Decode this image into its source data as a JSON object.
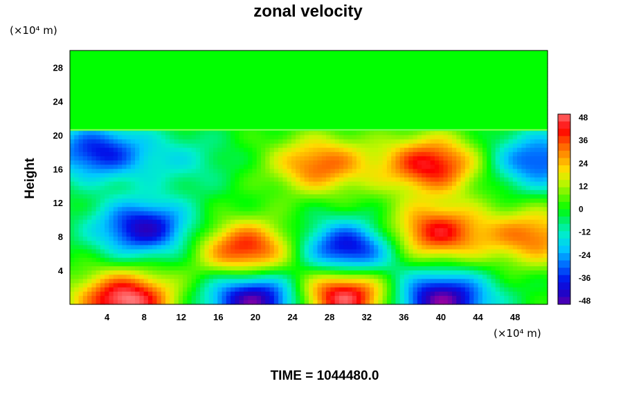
{
  "chart_data": {
    "type": "heatmap",
    "title": "zonal velocity",
    "ylabel": "Height",
    "xunit": "(×10⁴ m)",
    "yunit": "(×10⁴ m)",
    "time_label": "TIME = 1044480.0",
    "xlim": [
      0,
      51.5
    ],
    "ylim": [
      0,
      30
    ],
    "xticks": [
      "4",
      "8",
      "12",
      "16",
      "20",
      "24",
      "28",
      "32",
      "36",
      "40",
      "44",
      "48"
    ],
    "yticks": [
      "4",
      "8",
      "12",
      "16",
      "20",
      "24",
      "28"
    ],
    "colorbar": {
      "range": [
        -48,
        48
      ],
      "ticks": [
        "48",
        "36",
        "24",
        "12",
        "0",
        "-12",
        "-24",
        "-36",
        "-48"
      ]
    },
    "upper_layer": {
      "y_from": 20.5,
      "value": 0
    },
    "features": [
      {
        "x": 6,
        "y": 0.5,
        "value": 50
      },
      {
        "x": 20,
        "y": 0.5,
        "value": -50
      },
      {
        "x": 29.5,
        "y": 1,
        "value": 50
      },
      {
        "x": 40,
        "y": 0.5,
        "value": -50
      },
      {
        "x": 8,
        "y": 9,
        "value": -42
      },
      {
        "x": 19,
        "y": 6.5,
        "value": 40
      },
      {
        "x": 30,
        "y": 6.5,
        "value": -42
      },
      {
        "x": 39.5,
        "y": 8.5,
        "value": 40
      },
      {
        "x": 27,
        "y": 16.5,
        "value": 32
      },
      {
        "x": 39,
        "y": 16.5,
        "value": 42
      },
      {
        "x": 3,
        "y": 18,
        "value": -36
      },
      {
        "x": 50.5,
        "y": 17,
        "value": -32
      },
      {
        "x": 50,
        "y": 8,
        "value": 30
      },
      {
        "x": 12,
        "y": 17,
        "value": -12
      }
    ]
  }
}
